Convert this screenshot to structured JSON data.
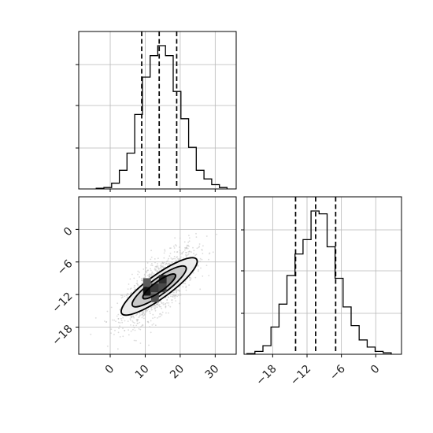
{
  "chart_data": {
    "type": "corner",
    "panels": [
      {
        "id": "hist_x",
        "type": "histogram",
        "xlim": [
          -9,
          36
        ],
        "bins": [
          {
            "x0": -4.0,
            "x1": -1.8,
            "count": 0.005
          },
          {
            "x0": -1.8,
            "x1": 0.4,
            "count": 0.01
          },
          {
            "x0": 0.4,
            "x1": 2.6,
            "count": 0.04
          },
          {
            "x0": 2.6,
            "x1": 4.8,
            "count": 0.13
          },
          {
            "x0": 4.8,
            "x1": 7.0,
            "count": 0.25
          },
          {
            "x0": 7.0,
            "x1": 9.2,
            "count": 0.52
          },
          {
            "x0": 9.2,
            "x1": 11.4,
            "count": 0.78
          },
          {
            "x0": 11.4,
            "x1": 13.6,
            "count": 0.93
          },
          {
            "x0": 13.6,
            "x1": 15.8,
            "count": 1.0
          },
          {
            "x0": 15.8,
            "x1": 18.0,
            "count": 0.93
          },
          {
            "x0": 18.0,
            "x1": 20.2,
            "count": 0.68
          },
          {
            "x0": 20.2,
            "x1": 22.4,
            "count": 0.49
          },
          {
            "x0": 22.4,
            "x1": 24.6,
            "count": 0.29
          },
          {
            "x0": 24.6,
            "x1": 26.8,
            "count": 0.13
          },
          {
            "x0": 26.8,
            "x1": 29.0,
            "count": 0.07
          },
          {
            "x0": 29.0,
            "x1": 31.2,
            "count": 0.03
          },
          {
            "x0": 31.2,
            "x1": 33.4,
            "count": 0.01
          }
        ],
        "quantiles": [
          9.0,
          14.0,
          19.0
        ],
        "grid": true
      },
      {
        "id": "hist_y",
        "type": "histogram",
        "xlim": [
          -23,
          4.5
        ],
        "xticks": [
          -18,
          -12,
          -6,
          0
        ],
        "xtick_labels": [
          "−18",
          "−12",
          "−6",
          "0"
        ],
        "bins": [
          {
            "x0": -22.5,
            "x1": -21.1,
            "count": 0.005
          },
          {
            "x0": -21.1,
            "x1": -19.7,
            "count": 0.02
          },
          {
            "x0": -19.7,
            "x1": -18.3,
            "count": 0.06
          },
          {
            "x0": -18.3,
            "x1": -16.9,
            "count": 0.19
          },
          {
            "x0": -16.9,
            "x1": -15.5,
            "count": 0.35
          },
          {
            "x0": -15.5,
            "x1": -14.1,
            "count": 0.55
          },
          {
            "x0": -14.1,
            "x1": -12.7,
            "count": 0.7
          },
          {
            "x0": -12.7,
            "x1": -11.3,
            "count": 0.8
          },
          {
            "x0": -11.3,
            "x1": -9.9,
            "count": 1.0
          },
          {
            "x0": -9.9,
            "x1": -8.5,
            "count": 0.98
          },
          {
            "x0": -8.5,
            "x1": -7.1,
            "count": 0.75
          },
          {
            "x0": -7.1,
            "x1": -5.7,
            "count": 0.53
          },
          {
            "x0": -5.7,
            "x1": -4.3,
            "count": 0.33
          },
          {
            "x0": -4.3,
            "x1": -2.9,
            "count": 0.2
          },
          {
            "x0": -2.9,
            "x1": -1.5,
            "count": 0.1
          },
          {
            "x0": -1.5,
            "x1": -0.1,
            "count": 0.05
          },
          {
            "x0": -0.1,
            "x1": 1.3,
            "count": 0.02
          },
          {
            "x0": 1.3,
            "x1": 2.7,
            "count": 0.01
          }
        ],
        "quantiles": [
          -14.0,
          -10.5,
          -7.0
        ],
        "grid": true
      },
      {
        "id": "joint",
        "type": "2d-density",
        "xlim": [
          -9,
          36
        ],
        "ylim": [
          -23,
          6
        ],
        "xticks": [
          0,
          10,
          20,
          30
        ],
        "xtick_labels": [
          "0",
          "10",
          "20",
          "30"
        ],
        "yticks": [
          0,
          -6,
          -12,
          -18
        ],
        "ytick_labels": [
          "0",
          "−6",
          "−12",
          "−18"
        ],
        "mean": [
          14,
          -10.5
        ],
        "contour_levels": [
          {
            "rx": 13.2,
            "ry": 3.3,
            "shade": "#ececec"
          },
          {
            "rx": 9.4,
            "ry": 2.35,
            "shade": "#c4c4c4"
          },
          {
            "rx": 5.7,
            "ry": 1.45,
            "shade": "#7a7a7a"
          }
        ],
        "contour_angle_deg": 36,
        "dense_cells": [
          {
            "x": 10.5,
            "y": -11.4,
            "shade": "#141414"
          },
          {
            "x": 12.8,
            "y": -10.8,
            "shade": "#3a3a3a"
          },
          {
            "x": 15.0,
            "y": -9.2,
            "shade": "#2c2c2c"
          },
          {
            "x": 12.8,
            "y": -12.6,
            "shade": "#505050"
          },
          {
            "x": 15.0,
            "y": -10.8,
            "shade": "#4a4a4a"
          },
          {
            "x": 10.5,
            "y": -9.8,
            "shade": "#5a5a5a"
          }
        ],
        "scatter_color": "#bdbdbd",
        "grid": true
      }
    ]
  }
}
